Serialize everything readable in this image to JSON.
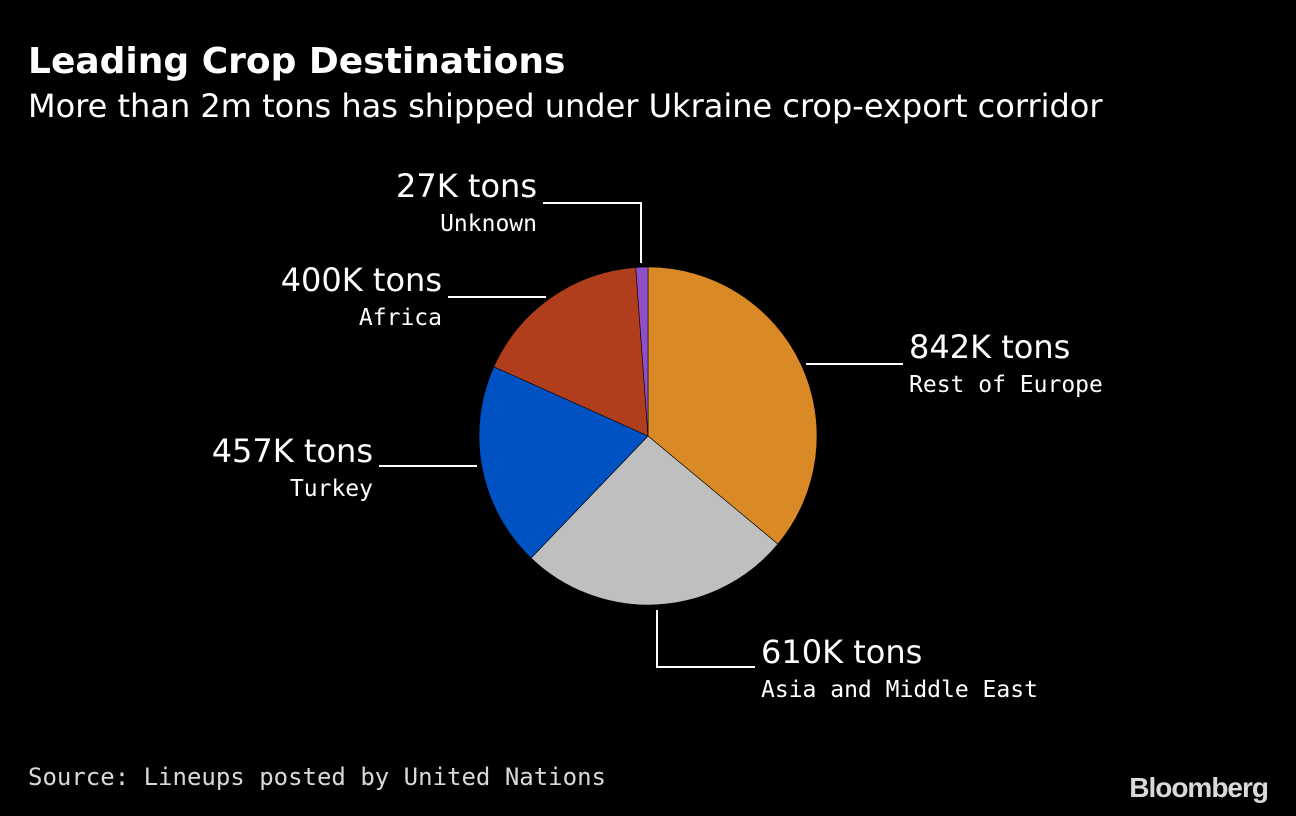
{
  "title": "Leading Crop Destinations",
  "subtitle": "More than 2m tons has shipped under Ukraine crop-export corridor",
  "source": "Source: Lineups posted by United Nations",
  "brand": "Bloomberg",
  "chart_data": {
    "type": "pie",
    "title": "Leading Crop Destinations",
    "subtitle": "More than 2m tons has shipped under Ukraine crop-export corridor",
    "unit": "tons",
    "slices": [
      {
        "label": "Rest of Europe",
        "value": 842000,
        "value_label": "842K tons",
        "color": "#d98a26"
      },
      {
        "label": "Asia and Middle East",
        "value": 610000,
        "value_label": "610K tons",
        "color": "#bfbfbf"
      },
      {
        "label": "Turkey",
        "value": 457000,
        "value_label": "457K tons",
        "color": "#0051c2"
      },
      {
        "label": "Africa",
        "value": 400000,
        "value_label": "400K tons",
        "color": "#b03e1c"
      },
      {
        "label": "Unknown",
        "value": 27000,
        "value_label": "27K tons",
        "color": "#8e4fc8"
      }
    ],
    "start_angle_deg": 0,
    "direction": "clockwise",
    "legend": "none"
  }
}
